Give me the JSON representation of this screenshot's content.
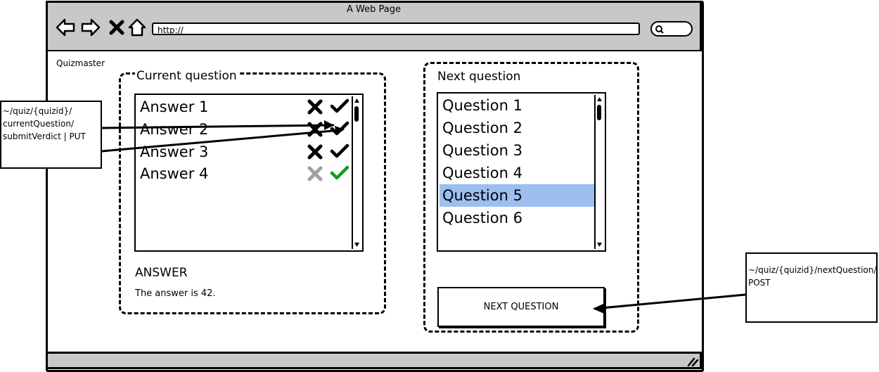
{
  "window": {
    "title": "A Web Page"
  },
  "browser": {
    "url": "http://"
  },
  "app": {
    "name": "Quizmaster"
  },
  "current_question": {
    "title": "Current question",
    "answers": [
      "Answer 1",
      "Answer 2",
      "Answer 3",
      "Answer 4"
    ],
    "answer_heading": "ANSWER",
    "answer_text": "The answer is 42."
  },
  "next_question": {
    "title": "Next question",
    "questions": [
      "Question 1",
      "Question 2",
      "Question 3",
      "Question 4",
      "Question 5",
      "Question 6"
    ],
    "selected": "Question 5",
    "button_label": "NEXT QUESTION"
  },
  "annotations": {
    "verdict_endpoint_lines": [
      "~/quiz/{quizid}/",
      "currentQuestion/",
      "submitVerdict | PUT"
    ],
    "next_endpoint_lines": [
      "~/quiz/{quizid}/nextQuestion/",
      "POST"
    ]
  },
  "colors": {
    "chrome": "#c8c8c8",
    "selection": "#9cbff0",
    "check_active": "#1a9a1a",
    "cross_inactive": "#a0a0a0"
  }
}
